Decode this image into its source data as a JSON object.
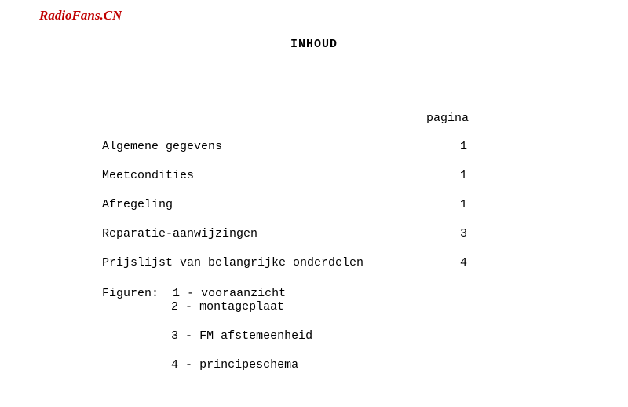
{
  "watermark": "RadioFans.CN",
  "title": "INHOUD",
  "paginaHeader": "pagina",
  "toc": [
    {
      "label": "Algemene gegevens",
      "page": "1"
    },
    {
      "label": "Meetcondities",
      "page": "1"
    },
    {
      "label": "Afregeling",
      "page": "1"
    },
    {
      "label": "Reparatie-aanwijzingen",
      "page": "3"
    },
    {
      "label": "Prijslijst van belangrijke onderdelen",
      "page": "4"
    }
  ],
  "figurenLabel": "Figuren:",
  "figuren": [
    {
      "num": "1",
      "sep": "-",
      "text": "vooraanzicht"
    },
    {
      "num": "2",
      "sep": "-",
      "text": "montageplaat"
    },
    {
      "num": "3",
      "sep": "-",
      "text": "FM afstemeenheid"
    },
    {
      "num": "4",
      "sep": "-",
      "text": "principeschema"
    }
  ],
  "colors": {
    "watermark": "#c00000",
    "text": "#000000",
    "background": "#ffffff"
  },
  "typography": {
    "bodyFont": "Courier New",
    "watermarkFont": "Times New Roman",
    "bodyFontSize": 15,
    "watermarkFontSize": 17
  }
}
